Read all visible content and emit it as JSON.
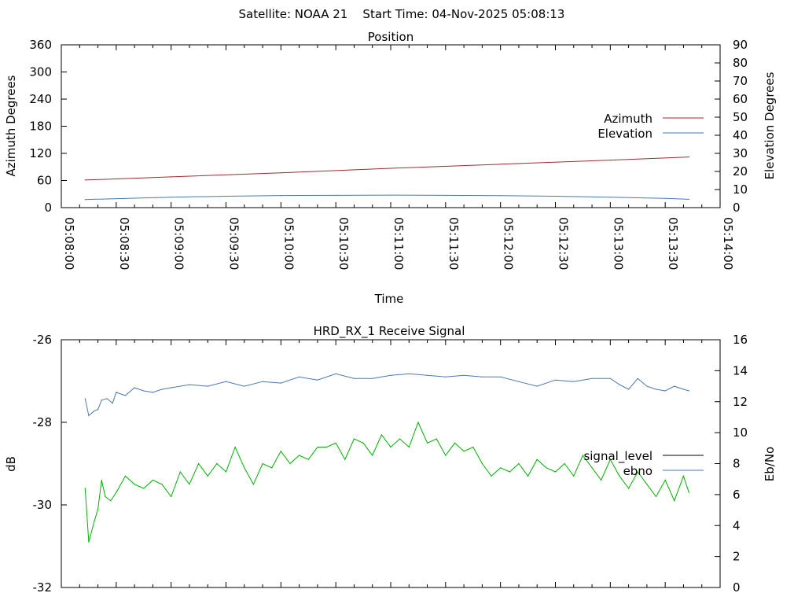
{
  "header": {
    "text": "Satellite: NOAA 21    Start Time: 04-Nov-2025 05:08:13"
  },
  "chart_data": [
    {
      "type": "line",
      "title": "Position",
      "xlabel": "Time",
      "ylabel": "Azimuth Degrees",
      "y2label": "Elevation Degrees",
      "x_ticks": [
        "05:08:00",
        "05:08:30",
        "05:09:00",
        "05:09:30",
        "05:10:00",
        "05:10:30",
        "05:11:00",
        "05:11:30",
        "05:12:00",
        "05:12:30",
        "05:13:00",
        "05:13:30",
        "05:14:00"
      ],
      "xlim": [
        "05:08:00",
        "05:14:00"
      ],
      "ylim": [
        0,
        360
      ],
      "y_ticks": [
        0,
        60,
        120,
        180,
        240,
        300,
        360
      ],
      "y2lim": [
        0,
        90
      ],
      "y2_ticks": [
        0,
        10,
        20,
        30,
        40,
        50,
        60,
        70,
        80,
        90
      ],
      "legend_position": "right",
      "grid": false,
      "series": [
        {
          "name": "Azimuth",
          "axis": "left",
          "color": "#a52a2a",
          "x": [
            "05:08:13",
            "05:09:00",
            "05:10:00",
            "05:11:00",
            "05:12:00",
            "05:13:00",
            "05:13:43"
          ],
          "y": [
            61,
            68,
            77,
            87,
            96,
            105,
            112
          ]
        },
        {
          "name": "Elevation",
          "axis": "right",
          "color": "#4a78b4",
          "x": [
            "05:08:13",
            "05:08:40",
            "05:09:00",
            "05:09:30",
            "05:10:00",
            "05:10:30",
            "05:11:00",
            "05:11:30",
            "05:12:00",
            "05:12:30",
            "05:13:00",
            "05:13:30",
            "05:13:43"
          ],
          "y": [
            4.5,
            5.2,
            5.8,
            6.3,
            6.7,
            6.8,
            6.9,
            6.8,
            6.6,
            6.3,
            5.8,
            5.1,
            4.6
          ]
        }
      ]
    },
    {
      "type": "line",
      "title": "HRD_RX_1 Receive Signal",
      "xlabel": "",
      "ylabel": "dB",
      "y2label": "Eb/No",
      "xlim": [
        "05:08:00",
        "05:14:00"
      ],
      "ylim": [
        -32,
        -26
      ],
      "y_ticks": [
        -32,
        -30,
        -28,
        -26
      ],
      "y2lim": [
        0,
        16
      ],
      "y2_ticks": [
        0,
        2,
        4,
        6,
        8,
        10,
        12,
        14,
        16
      ],
      "legend_position": "right",
      "grid": false,
      "series": [
        {
          "name": "signal_level",
          "axis": "left",
          "color": "#00b000",
          "x": [
            "05:08:13",
            "05:08:15",
            "05:08:18",
            "05:08:20",
            "05:08:22",
            "05:08:24",
            "05:08:27",
            "05:08:30",
            "05:08:35",
            "05:08:40",
            "05:08:45",
            "05:08:50",
            "05:08:55",
            "05:09:00",
            "05:09:05",
            "05:09:10",
            "05:09:15",
            "05:09:20",
            "05:09:25",
            "05:09:30",
            "05:09:35",
            "05:09:40",
            "05:09:45",
            "05:09:50",
            "05:09:55",
            "05:10:00",
            "05:10:05",
            "05:10:10",
            "05:10:15",
            "05:10:20",
            "05:10:25",
            "05:10:30",
            "05:10:35",
            "05:10:40",
            "05:10:45",
            "05:10:50",
            "05:10:55",
            "05:11:00",
            "05:11:05",
            "05:11:10",
            "05:11:15",
            "05:11:20",
            "05:11:25",
            "05:11:30",
            "05:11:35",
            "05:11:40",
            "05:11:45",
            "05:11:50",
            "05:11:55",
            "05:12:00",
            "05:12:05",
            "05:12:10",
            "05:12:15",
            "05:12:20",
            "05:12:25",
            "05:12:30",
            "05:12:35",
            "05:12:40",
            "05:12:45",
            "05:12:50",
            "05:12:55",
            "05:13:00",
            "05:13:05",
            "05:13:10",
            "05:13:15",
            "05:13:20",
            "05:13:25",
            "05:13:30",
            "05:13:35",
            "05:13:40",
            "05:13:43"
          ],
          "y": [
            -29.6,
            -30.9,
            -30.4,
            -30.1,
            -29.4,
            -29.8,
            -29.9,
            -29.7,
            -29.3,
            -29.5,
            -29.6,
            -29.4,
            -29.5,
            -29.8,
            -29.2,
            -29.5,
            -29.0,
            -29.3,
            -29.0,
            -29.2,
            -28.6,
            -29.1,
            -29.5,
            -29.0,
            -29.1,
            -28.7,
            -29.0,
            -28.8,
            -28.9,
            -28.6,
            -28.6,
            -28.5,
            -28.9,
            -28.4,
            -28.5,
            -28.8,
            -28.3,
            -28.6,
            -28.4,
            -28.6,
            -28.0,
            -28.5,
            -28.4,
            -28.8,
            -28.5,
            -28.7,
            -28.6,
            -29.0,
            -29.3,
            -29.1,
            -29.2,
            -29.0,
            -29.3,
            -28.9,
            -29.1,
            -29.2,
            -29.0,
            -29.3,
            -28.8,
            -29.1,
            -29.4,
            -28.9,
            -29.3,
            -29.6,
            -29.2,
            -29.5,
            -29.8,
            -29.4,
            -29.9,
            -29.3,
            -29.7
          ]
        },
        {
          "name": "ebno",
          "axis": "right",
          "color": "#4a78b4",
          "x": [
            "05:08:13",
            "05:08:15",
            "05:08:18",
            "05:08:20",
            "05:08:22",
            "05:08:25",
            "05:08:28",
            "05:08:30",
            "05:08:35",
            "05:08:40",
            "05:08:45",
            "05:08:50",
            "05:08:55",
            "05:09:00",
            "05:09:10",
            "05:09:20",
            "05:09:30",
            "05:09:40",
            "05:09:50",
            "05:10:00",
            "05:10:10",
            "05:10:20",
            "05:10:30",
            "05:10:40",
            "05:10:50",
            "05:11:00",
            "05:11:10",
            "05:11:20",
            "05:11:30",
            "05:11:40",
            "05:11:50",
            "05:12:00",
            "05:12:10",
            "05:12:20",
            "05:12:30",
            "05:12:40",
            "05:12:50",
            "05:13:00",
            "05:13:05",
            "05:13:10",
            "05:13:15",
            "05:13:20",
            "05:13:25",
            "05:13:30",
            "05:13:35",
            "05:13:40",
            "05:13:43"
          ],
          "y": [
            12.2,
            11.1,
            11.4,
            11.5,
            12.1,
            12.2,
            11.9,
            12.6,
            12.4,
            12.9,
            12.7,
            12.6,
            12.8,
            12.9,
            13.1,
            13.0,
            13.3,
            13.0,
            13.3,
            13.2,
            13.6,
            13.4,
            13.8,
            13.5,
            13.5,
            13.7,
            13.8,
            13.7,
            13.6,
            13.7,
            13.6,
            13.6,
            13.3,
            13.0,
            13.4,
            13.3,
            13.5,
            13.5,
            13.1,
            12.8,
            13.5,
            13.0,
            12.8,
            12.7,
            13.0,
            12.8,
            12.7
          ]
        }
      ]
    }
  ]
}
